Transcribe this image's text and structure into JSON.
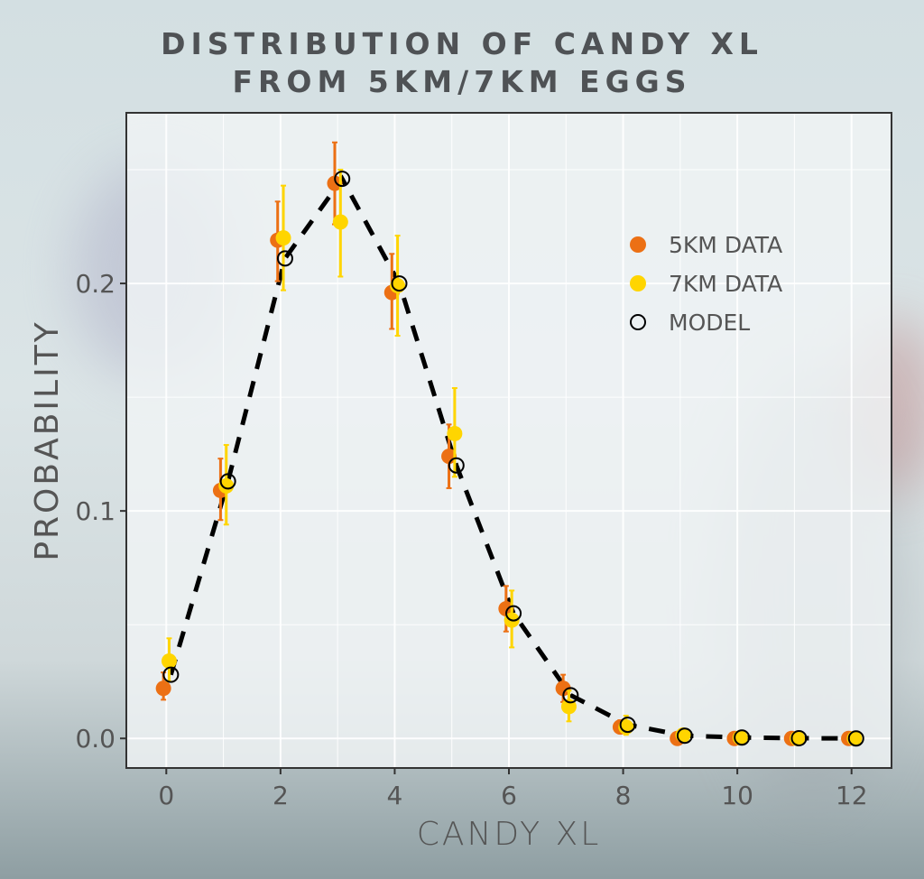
{
  "chart_data": {
    "type": "scatter",
    "title": "DISTRIBUTION OF CANDY XL\nFROM 5KM/7KM EGGS",
    "title_lines": [
      "DISTRIBUTION OF CANDY XL",
      "FROM 5KM/7KM EGGS"
    ],
    "xlabel": "CANDY XL",
    "ylabel": "PROBABILITY",
    "xlim": [
      -0.7,
      12.7
    ],
    "ylim": [
      -0.013,
      0.275
    ],
    "xticks": [
      0,
      2,
      4,
      6,
      8,
      10,
      12
    ],
    "xtick_labels": [
      "0",
      "2",
      "4",
      "6",
      "8",
      "10",
      "12"
    ],
    "yticks": [
      0.0,
      0.1,
      0.2
    ],
    "ytick_labels": [
      "0.0",
      "0.1",
      "0.2"
    ],
    "grid": true,
    "legend_position": "top-right",
    "x": [
      0,
      1,
      2,
      3,
      4,
      5,
      6,
      7,
      8,
      9,
      10,
      11,
      12
    ],
    "series": [
      {
        "name": "5KM DATA",
        "color": "#ec7014",
        "style": "points-with-errorbars",
        "values": [
          0.022,
          0.109,
          0.219,
          0.244,
          0.196,
          0.124,
          0.057,
          0.022,
          0.005,
          0.0,
          0.0,
          0.0,
          0.0
        ],
        "err_low": [
          0.017,
          0.096,
          0.201,
          0.226,
          0.18,
          0.11,
          0.047,
          0.016,
          0.003,
          0.0,
          0.0,
          0.0,
          0.0
        ],
        "err_high": [
          0.029,
          0.123,
          0.236,
          0.262,
          0.213,
          0.138,
          0.067,
          0.028,
          0.008,
          0.001,
          0.001,
          0.0,
          0.0
        ]
      },
      {
        "name": "7KM DATA",
        "color": "#ffd500",
        "style": "points-with-errorbars",
        "values": [
          0.034,
          0.111,
          0.22,
          0.227,
          0.199,
          0.134,
          0.052,
          0.014,
          0.005,
          0.0015,
          0.0003,
          0.0,
          0.0
        ],
        "err_low": [
          0.025,
          0.094,
          0.197,
          0.203,
          0.177,
          0.115,
          0.04,
          0.0075,
          0.0016,
          0.0,
          0.0,
          0.0,
          0.0
        ],
        "err_high": [
          0.044,
          0.129,
          0.243,
          0.25,
          0.221,
          0.154,
          0.065,
          0.021,
          0.01,
          0.003,
          0.002,
          0.0005,
          0.0
        ]
      },
      {
        "name": "MODEL",
        "color": "#000000",
        "style": "open-circles-dashed-line",
        "values": [
          0.028,
          0.113,
          0.211,
          0.246,
          0.2,
          0.12,
          0.055,
          0.019,
          0.006,
          0.0012,
          0.0004,
          0.0001,
          0.0
        ]
      }
    ]
  }
}
